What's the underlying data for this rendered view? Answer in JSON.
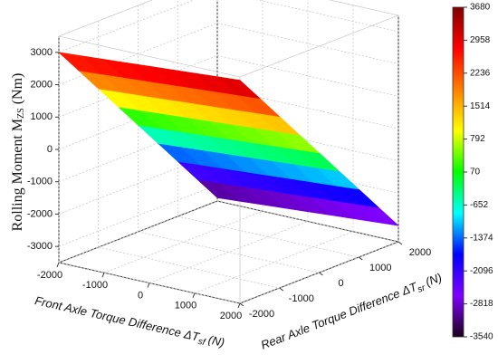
{
  "chart_data": {
    "type": "surface",
    "x_label": {
      "text": "Front Axle Torque Difference ΔT",
      "sub": "sf",
      "suffix": "(N)"
    },
    "y_label": {
      "text": "Rear Axle Torque Difference ΔT",
      "sub": "sr",
      "suffix": "(N)"
    },
    "z_label": {
      "text": "Rolling Moment M",
      "sub": "ZS",
      "suffix": "(Nm)"
    },
    "x": [
      -2000,
      -1500,
      -1000,
      -500,
      0,
      500,
      1000,
      1500,
      2000
    ],
    "y": [
      -2000,
      -1500,
      -1000,
      -500,
      0,
      500,
      1000,
      1500,
      2000
    ],
    "z": [
      [
        3000,
        3050,
        3100,
        3150,
        3200,
        3250,
        3300,
        3350,
        3400
      ],
      [
        2200,
        2250,
        2300,
        2350,
        2400,
        2450,
        2500,
        2550,
        2600
      ],
      [
        1400,
        1450,
        1500,
        1550,
        1600,
        1650,
        1700,
        1750,
        1800
      ],
      [
        600,
        650,
        700,
        750,
        800,
        850,
        900,
        950,
        1000
      ],
      [
        -200,
        -150,
        -100,
        -50,
        0,
        50,
        100,
        150,
        200
      ],
      [
        -1000,
        -950,
        -900,
        -850,
        -800,
        -750,
        -700,
        -650,
        -600
      ],
      [
        -1800,
        -1750,
        -1700,
        -1650,
        -1600,
        -1550,
        -1500,
        -1450,
        -1400
      ],
      [
        -2600,
        -2550,
        -2500,
        -2450,
        -2400,
        -2350,
        -2300,
        -2250,
        -2200
      ],
      [
        -3400,
        -3350,
        -3300,
        -3250,
        -3200,
        -3150,
        -3100,
        -3050,
        -3000
      ]
    ],
    "xlim": [
      -2000,
      2000
    ],
    "ylim": [
      -2000,
      2000
    ],
    "zlim": [
      -3500,
      3500
    ],
    "xticks": [
      -2000,
      -1000,
      0,
      1000,
      2000
    ],
    "yticks": [
      -2000,
      -1000,
      0,
      1000,
      2000
    ],
    "zticks": [
      -3000,
      -2000,
      -1000,
      0,
      1000,
      2000,
      3000
    ],
    "grid": true,
    "colorbar": {
      "lim": [
        -3540,
        3680
      ],
      "ticks": [
        3680,
        2958,
        2236,
        1514,
        792,
        70,
        -652,
        -1374,
        -2096,
        -2818,
        -3540
      ],
      "colors": [
        "#1a001a",
        "#8000ff",
        "#0000ff",
        "#00ffff",
        "#00ff00",
        "#ffff00",
        "#ff8000",
        "#ff0000",
        "#800000"
      ]
    }
  }
}
